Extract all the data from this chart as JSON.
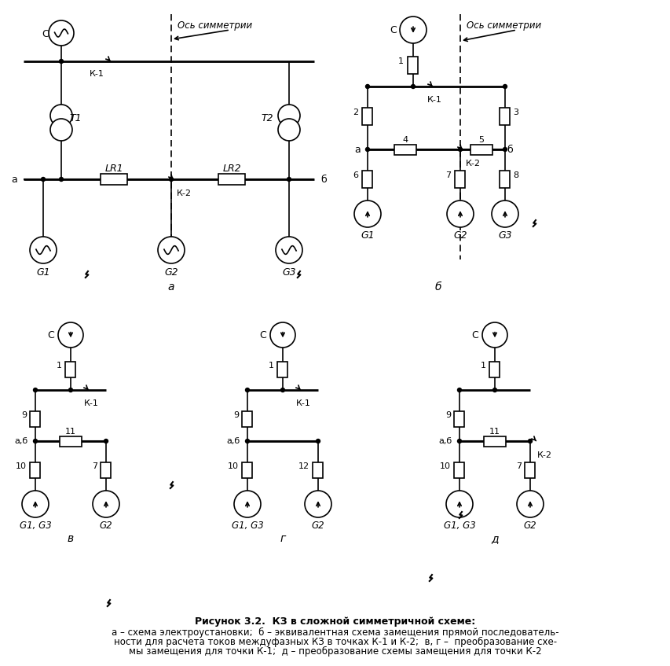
{
  "bg_color": "#ffffff",
  "lc": "#000000",
  "title": "Рисунок 3.2.  КЗ в сложной симметричной схеме:",
  "sub1": "а – схема электроустановки;  б – эквивалентная схема замещения прямой последователь-",
  "sub2": "ности для расчета токов междуфазных КЗ в точках К-1 и К-2;  в, г –  преобразование схе-",
  "sub3": "мы замещения для точки К-1;  д – преобразование схемы замещения для точки К-2"
}
